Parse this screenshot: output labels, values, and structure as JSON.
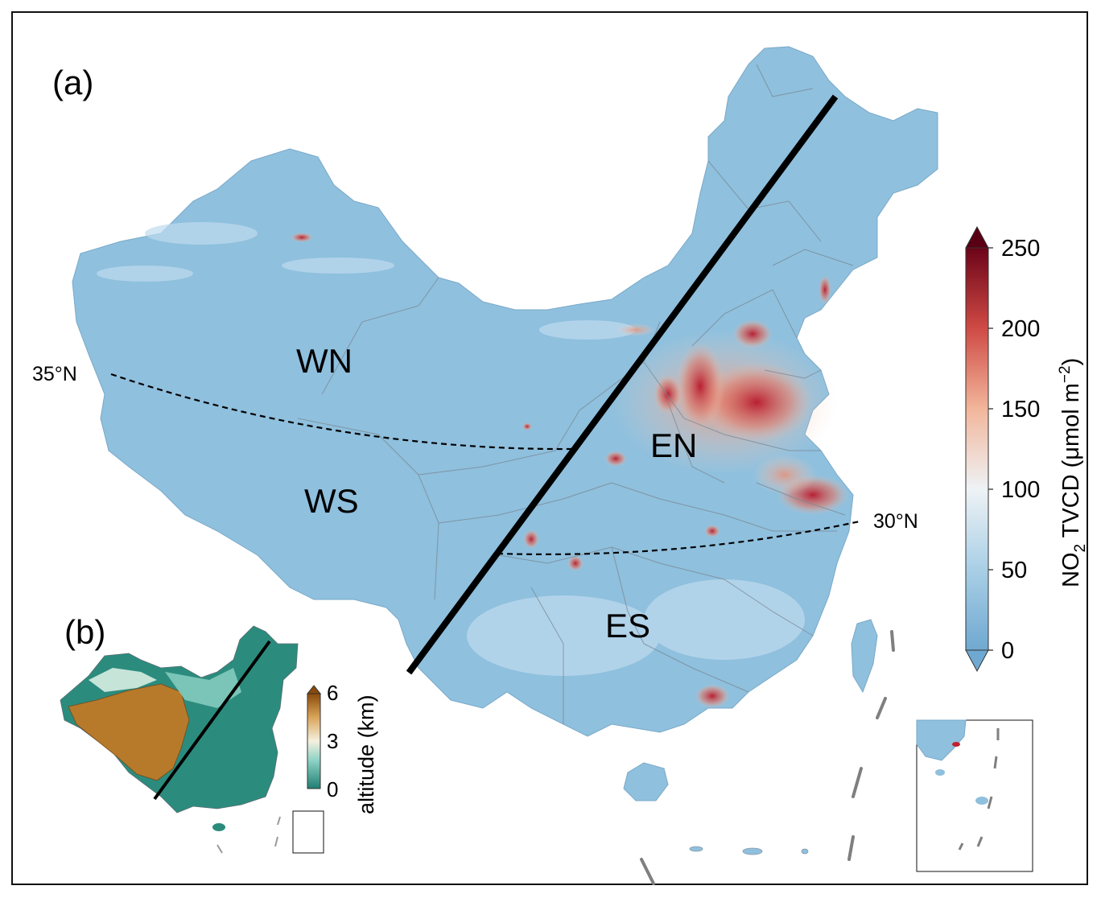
{
  "panel_a": {
    "label": "(a)",
    "regions": {
      "wn": "WN",
      "ws": "WS",
      "en": "EN",
      "es": "ES"
    },
    "lat_lines": {
      "north": "35°N",
      "south": "30°N"
    }
  },
  "panel_b": {
    "label": "(b)"
  },
  "colorbar_no2": {
    "title_main": "NO",
    "title_sub": "2",
    "title_rest": " TVCD (μmol m",
    "title_sup": "−2",
    "title_close": ")",
    "ticks": [
      "0",
      "50",
      "100",
      "150",
      "200",
      "250"
    ],
    "colors": [
      "#6fa8d0",
      "#a9cfe6",
      "#eef2f5",
      "#f2b69b",
      "#cf4a45",
      "#8b0a22",
      "#5a0015"
    ]
  },
  "colorbar_altitude": {
    "title": "altitude (km)",
    "ticks": [
      "0",
      "3",
      "6"
    ],
    "colors": [
      "#1f7f72",
      "#8fd3c6",
      "#f5f0df",
      "#d9a55a",
      "#8a4a0c"
    ]
  }
}
